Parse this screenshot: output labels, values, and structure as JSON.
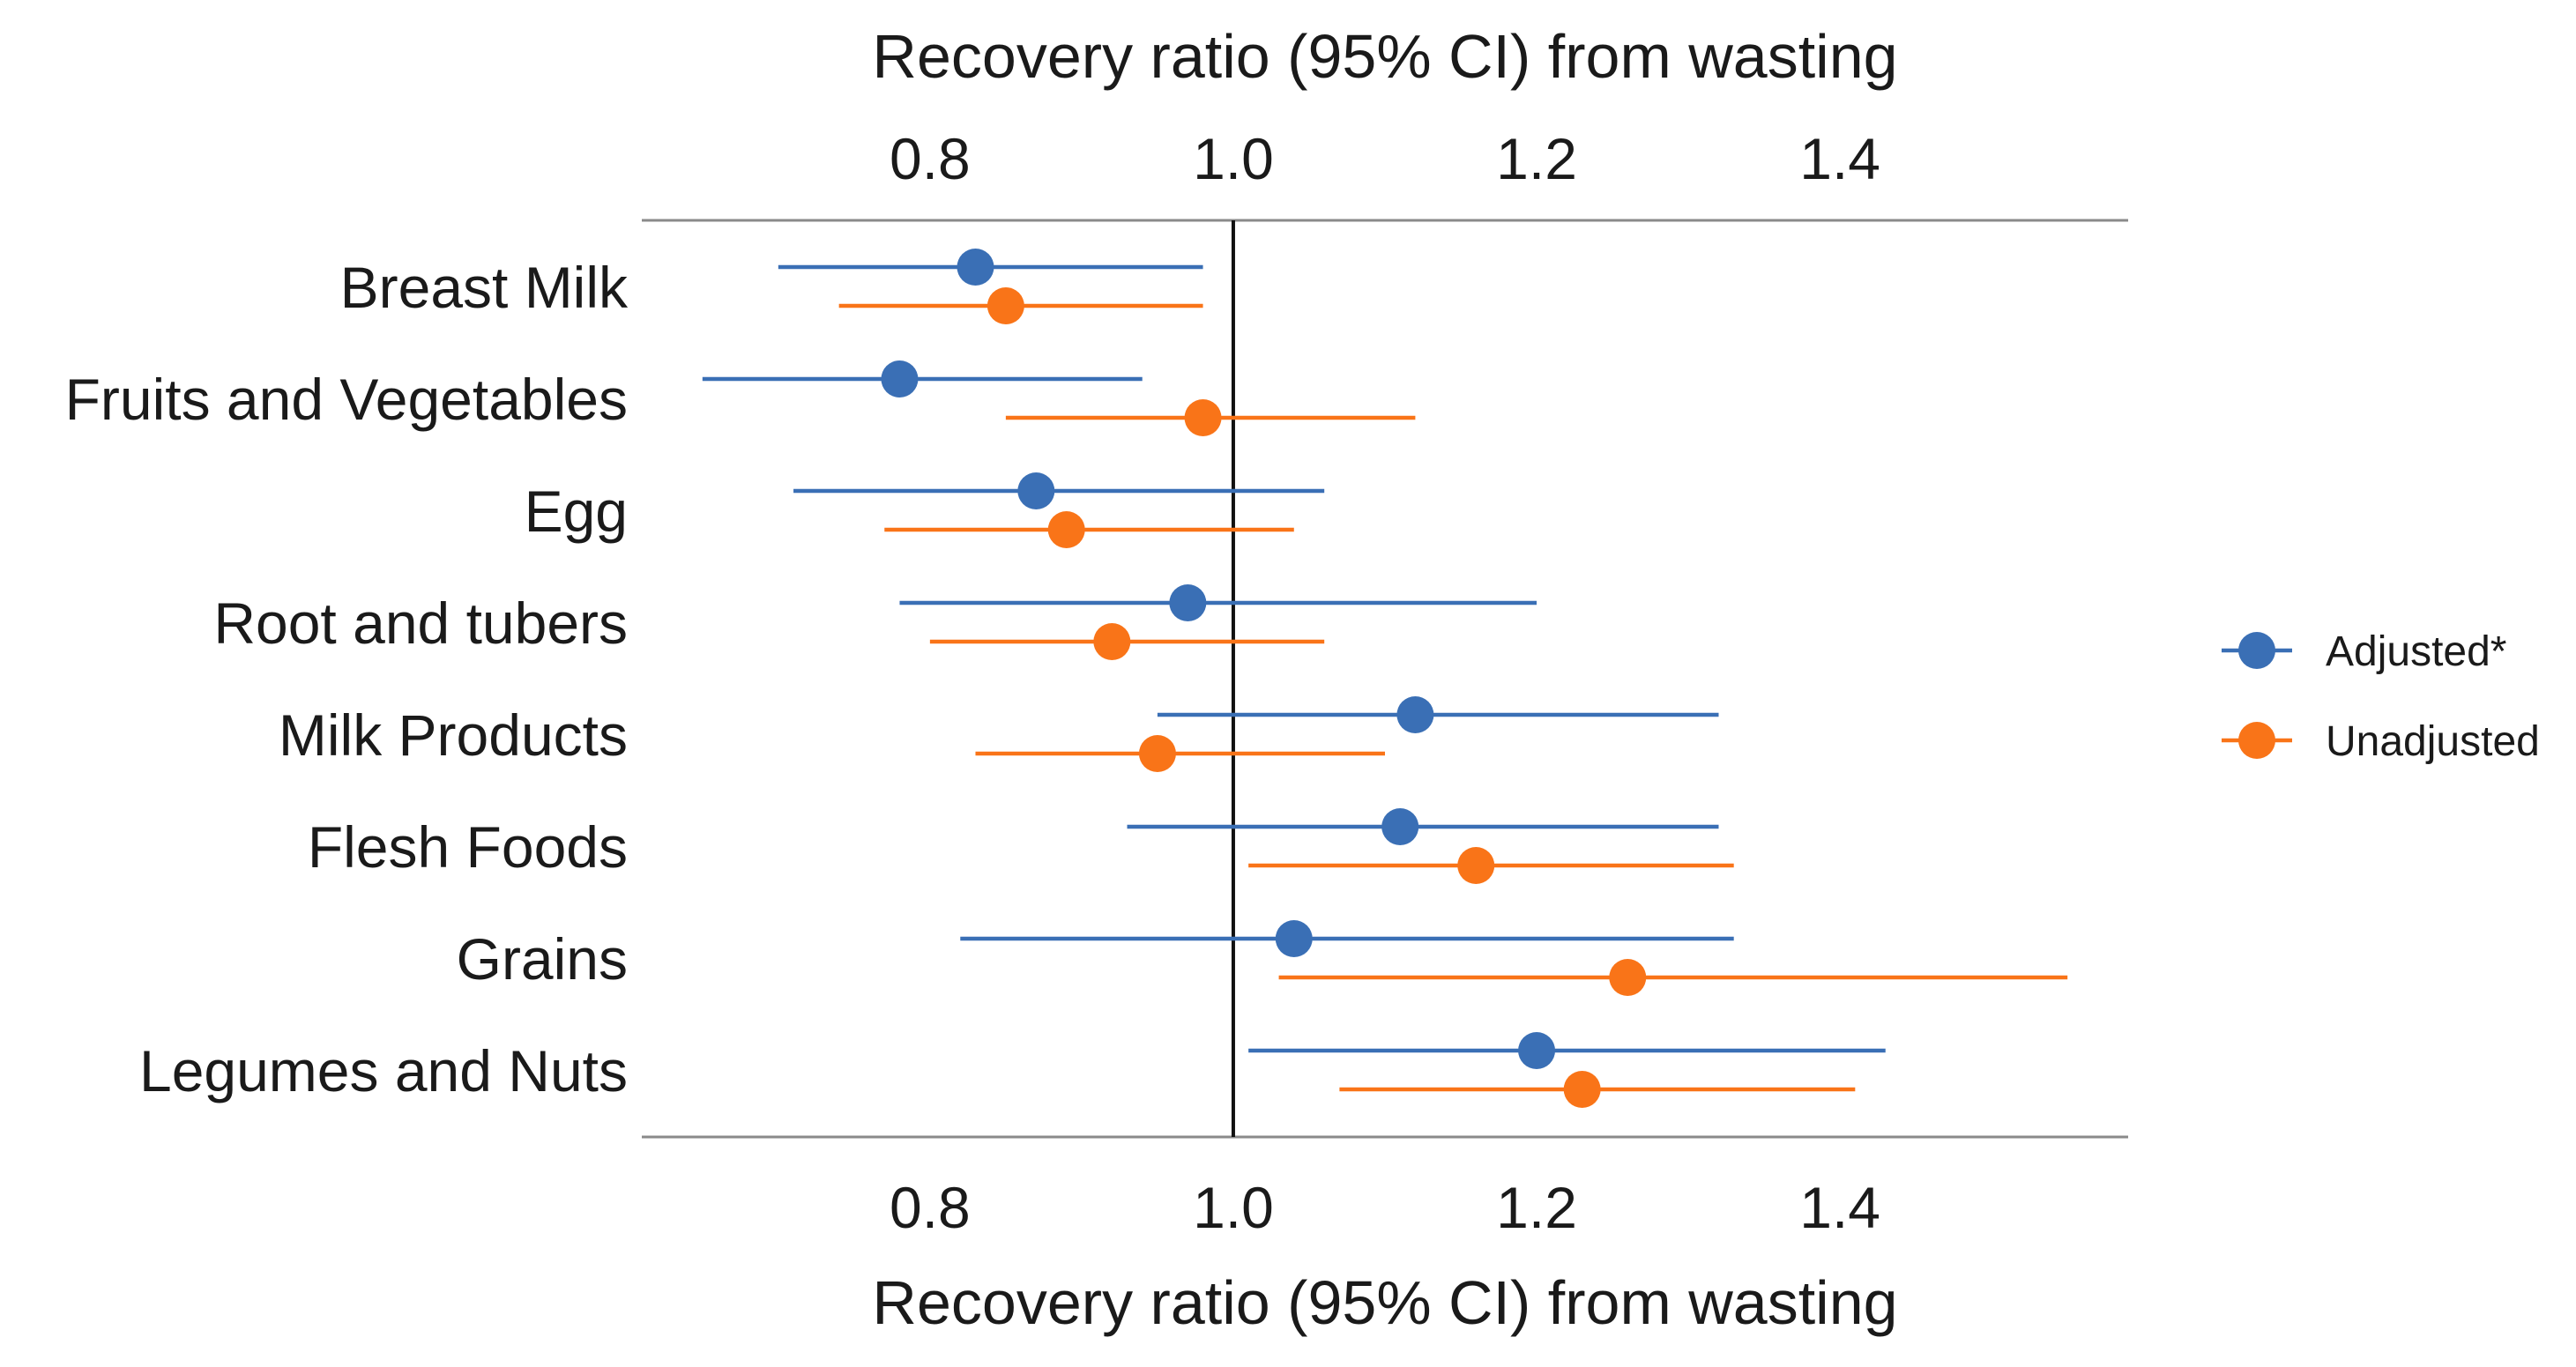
{
  "chart_data": {
    "type": "forest",
    "title": "",
    "xlabel_top": "Recovery ratio (95% CI) from wasting",
    "xlabel_bottom": "Recovery ratio (95% CI) from wasting",
    "ylabel": "",
    "xlim": [
      0.61,
      1.59
    ],
    "xticks": [
      "0.8",
      "1.0",
      "1.2",
      "1.4"
    ],
    "reference_line": 1.0,
    "legend_position": "right",
    "categories": [
      "Breast Milk",
      "Fruits and Vegetables",
      "Egg",
      "Root and tubers",
      "Milk Products",
      "Flesh Foods",
      "Grains",
      "Legumes and Nuts"
    ],
    "series": [
      {
        "name": "Adjusted*",
        "color": "#3a6fb5",
        "points": [
          {
            "est": 0.83,
            "low": 0.7,
            "high": 0.98
          },
          {
            "est": 0.78,
            "low": 0.65,
            "high": 0.94
          },
          {
            "est": 0.87,
            "low": 0.71,
            "high": 1.06
          },
          {
            "est": 0.97,
            "low": 0.78,
            "high": 1.2
          },
          {
            "est": 1.12,
            "low": 0.95,
            "high": 1.32
          },
          {
            "est": 1.11,
            "low": 0.93,
            "high": 1.32
          },
          {
            "est": 1.04,
            "low": 0.82,
            "high": 1.33
          },
          {
            "est": 1.2,
            "low": 1.01,
            "high": 1.43
          }
        ]
      },
      {
        "name": "Unadjusted",
        "color": "#f97418",
        "points": [
          {
            "est": 0.85,
            "low": 0.74,
            "high": 0.98
          },
          {
            "est": 0.98,
            "low": 0.85,
            "high": 1.12
          },
          {
            "est": 0.89,
            "low": 0.77,
            "high": 1.04
          },
          {
            "est": 0.92,
            "low": 0.8,
            "high": 1.06
          },
          {
            "est": 0.95,
            "low": 0.83,
            "high": 1.1
          },
          {
            "est": 1.16,
            "low": 1.01,
            "high": 1.33
          },
          {
            "est": 1.26,
            "low": 1.03,
            "high": 1.55
          },
          {
            "est": 1.23,
            "low": 1.07,
            "high": 1.41
          }
        ]
      }
    ]
  }
}
